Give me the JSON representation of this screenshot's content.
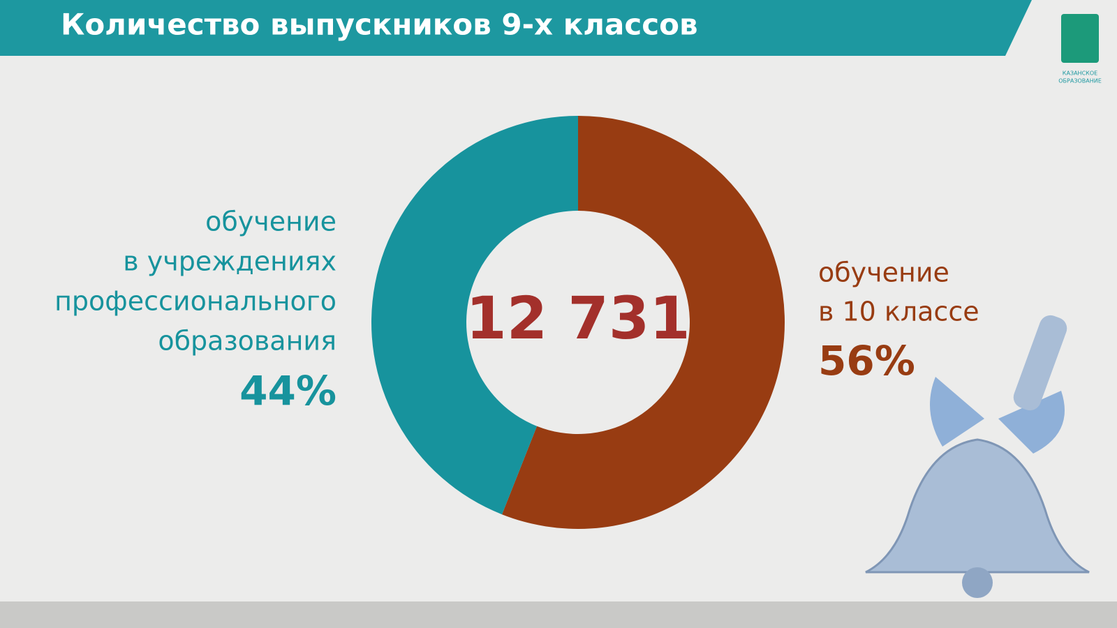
{
  "chart_data": {
    "type": "donut",
    "title": "Количество выпускников 9-х классов",
    "center_label": "12 731",
    "series": [
      {
        "name": [
          "обучение",
          "в 10 классе"
        ],
        "color": "#983c12",
        "values": [
          56
        ],
        "value_labels": [
          "56%"
        ]
      },
      {
        "name": [
          "обучение",
          "в учреждениях",
          "профессионального",
          "образования"
        ],
        "color": "#17939d",
        "values": [
          44
        ],
        "value_labels": [
          "44%"
        ]
      }
    ]
  },
  "logo": {
    "text": [
      "КАЗАНСКОЕ",
      "ОБРАЗОВАНИЕ"
    ]
  }
}
